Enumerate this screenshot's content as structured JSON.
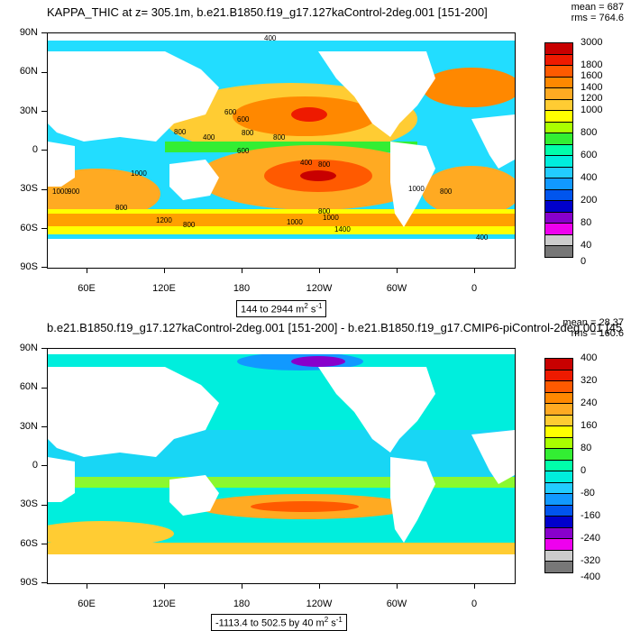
{
  "panel1": {
    "title": "KAPPA_THIC at z= 305.1m, b.e21.B1850.f19_g17.127kaControl-2deg.001 [151-200]",
    "stats": {
      "mean": "mean = 687",
      "rms": "rms = 764.6"
    },
    "range_label": {
      "text": "144 to 2944 m",
      "sup": "2",
      "unit": "s",
      "sup2": "-1"
    },
    "colorbar": {
      "labels": [
        "3000",
        "1800",
        "1600",
        "1400",
        "1200",
        "1000",
        "800",
        "600",
        "400",
        "200",
        "80",
        "40",
        "0"
      ],
      "colors": [
        "#c80000",
        "#ee1a00",
        "#ff5a00",
        "#ff8800",
        "#ffaa22",
        "#ffcc33",
        "#ffff00",
        "#aaff00",
        "#33ee33",
        "#00ffaa",
        "#00eedd",
        "#22ccff",
        "#1199ff",
        "#0055ee",
        "#0000cc",
        "#8800cc",
        "#ee00ee",
        "#cccccc",
        "#777777"
      ],
      "contour_labels": [
        "400",
        "600",
        "600",
        "800",
        "800",
        "400",
        "800",
        "600",
        "1000",
        "400",
        "800",
        "1000",
        "800",
        "800",
        "1000",
        "1200",
        "1400",
        "1000",
        "400",
        "1000",
        "900",
        "800",
        "800"
      ]
    }
  },
  "panel2": {
    "title": "b.e21.B1850.f19_g17.127kaControl-2deg.001 [151-200] - b.e21.B1850.f19_g17.CMIP6-piControl-2deg.001 [45",
    "stats": {
      "mean": "mean = 28.37",
      "rms": "rms = 160.6"
    },
    "range_label": {
      "text": "-1113.4 to 502.5 by 40 m",
      "sup": "2",
      "unit": "s",
      "sup2": "-1"
    },
    "colorbar": {
      "labels": [
        "400",
        "320",
        "240",
        "160",
        "80",
        "0",
        "-80",
        "-160",
        "-240",
        "-320",
        "-400"
      ],
      "colors": [
        "#c80000",
        "#ee1a00",
        "#ff5a00",
        "#ff8800",
        "#ffaa22",
        "#ffcc33",
        "#ffff00",
        "#aaff00",
        "#33ee33",
        "#00ffaa",
        "#00eedd",
        "#22ccff",
        "#1199ff",
        "#0055ee",
        "#0000cc",
        "#8800cc",
        "#ee00ee",
        "#cccccc",
        "#777777"
      ]
    }
  },
  "axes": {
    "lat_labels": [
      "90N",
      "60N",
      "30N",
      "0",
      "30S",
      "60S",
      "90S"
    ],
    "lon_labels": [
      "60E",
      "120E",
      "180",
      "120W",
      "60W",
      "0"
    ]
  }
}
